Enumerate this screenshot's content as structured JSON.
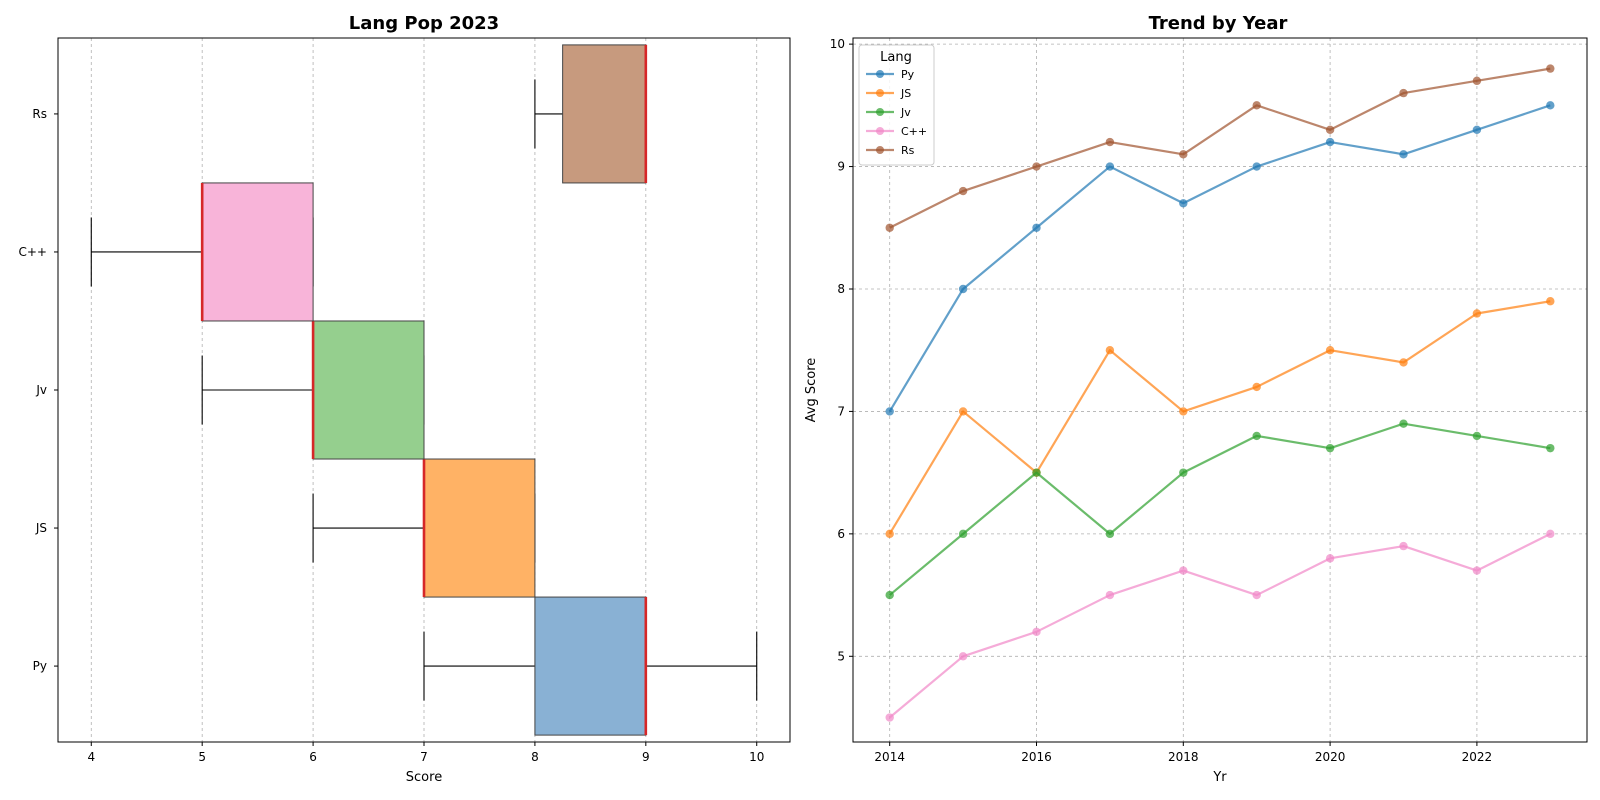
{
  "chart_data": [
    {
      "type": "box",
      "orientation": "horizontal",
      "title": "Lang Pop 2023",
      "xlabel": "Score",
      "ylabel": "",
      "xlim": [
        3.7,
        10.3
      ],
      "xticks": [
        "4",
        "5",
        "6",
        "7",
        "8",
        "9",
        "10"
      ],
      "grid": "x-dashed",
      "median_color": "#d62728",
      "categories": [
        "Py",
        "JS",
        "Jv",
        "C++",
        "Rs"
      ],
      "boxes": [
        {
          "name": "Py",
          "min": 7,
          "q1": 8,
          "median": 9,
          "q3": 9,
          "max": 10,
          "color": "#89b1d4"
        },
        {
          "name": "JS",
          "min": 6,
          "q1": 7,
          "median": 7,
          "q3": 8,
          "max": 8,
          "color": "#ffb265"
        },
        {
          "name": "Jv",
          "min": 5,
          "q1": 6,
          "median": 6,
          "q3": 7,
          "max": 7,
          "color": "#95cf8e"
        },
        {
          "name": "C++",
          "min": 4,
          "q1": 5,
          "median": 5,
          "q3": 6,
          "max": 6,
          "color": "#f8b4d9"
        },
        {
          "name": "Rs",
          "min": 8,
          "q1": 8.25,
          "median": 9,
          "q3": 9,
          "max": 9,
          "color": "#c79a7e"
        }
      ]
    },
    {
      "type": "line",
      "title": "Trend by Year",
      "xlabel": "Yr",
      "ylabel": "Avg Score",
      "xlim": [
        2013.5,
        2023.5
      ],
      "ylim": [
        4.3,
        10.05
      ],
      "xticks": [
        "2014",
        "2016",
        "2018",
        "2020",
        "2022"
      ],
      "yticks": [
        "5",
        "6",
        "7",
        "8",
        "9",
        "10"
      ],
      "grid": "both-dashed",
      "legend_title": "Lang",
      "legend_position": "top-left",
      "x": [
        2014,
        2015,
        2016,
        2017,
        2018,
        2019,
        2020,
        2021,
        2022,
        2023
      ],
      "series": [
        {
          "name": "Py",
          "color": "#1f77b4",
          "values": [
            7.0,
            8.0,
            8.5,
            9.0,
            8.7,
            9.0,
            9.2,
            9.1,
            9.3,
            9.5
          ]
        },
        {
          "name": "JS",
          "color": "#ff7f0e",
          "values": [
            6.0,
            7.0,
            6.5,
            7.5,
            7.0,
            7.2,
            7.5,
            7.4,
            7.8,
            7.9
          ]
        },
        {
          "name": "Jv",
          "color": "#2ca02c",
          "values": [
            5.5,
            6.0,
            6.5,
            6.0,
            6.5,
            6.8,
            6.7,
            6.9,
            6.8,
            6.7
          ]
        },
        {
          "name": "C++",
          "color": "#f187c8",
          "values": [
            4.5,
            5.0,
            5.2,
            5.5,
            5.7,
            5.5,
            5.8,
            5.9,
            5.7,
            6.0
          ]
        },
        {
          "name": "Rs",
          "color": "#a0522d",
          "values": [
            8.5,
            8.8,
            9.0,
            9.2,
            9.1,
            9.5,
            9.3,
            9.6,
            9.7,
            9.8
          ]
        }
      ]
    }
  ]
}
